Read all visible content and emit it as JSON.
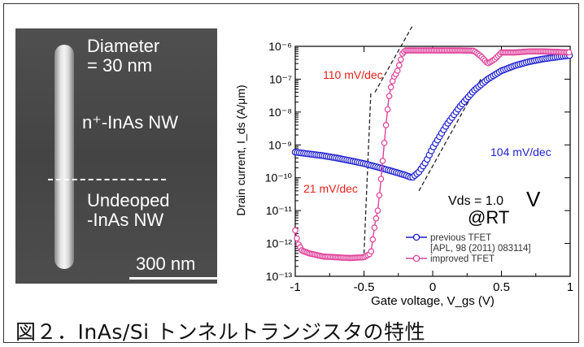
{
  "sem_image": {
    "diameter_label": "Diameter\n= 30 nm",
    "ntype_label": "n⁺-InAs NW",
    "undoped_label": "Undeoped\n-InAs NW",
    "scale_bar_label": "300 nm"
  },
  "chart_data": {
    "type": "line",
    "title": "",
    "xlabel": "Gate voltage, V_gs (V)",
    "ylabel": "Drain current, I_ds (A/μm)",
    "xlim": [
      -1,
      1
    ],
    "ylim_log10": [
      -13,
      -6
    ],
    "y_scale": "log",
    "x_ticks": [
      "-1",
      "-0.5",
      "0",
      "0.5",
      "1"
    ],
    "y_ticks": [
      "10⁻¹³",
      "10⁻¹²",
      "10⁻¹¹",
      "10⁻¹⁰",
      "10⁻⁹",
      "10⁻⁸",
      "10⁻⁷",
      "10⁻⁶"
    ],
    "grid": false,
    "legend_placement": "bottom-right",
    "series": [
      {
        "name": "previous TFET",
        "legend_extra": "[APL, 98 (2011) 083114]",
        "color": "#1f1fd0",
        "marker": "circle",
        "x": [
          -1.0,
          -0.9,
          -0.8,
          -0.7,
          -0.6,
          -0.5,
          -0.4,
          -0.3,
          -0.2,
          -0.15,
          -0.1,
          -0.05,
          0.0,
          0.1,
          0.2,
          0.3,
          0.4,
          0.5,
          0.6,
          0.7,
          0.8,
          0.9,
          1.0
        ],
        "y": [
          6e-10,
          5.3e-10,
          4.7e-10,
          4e-10,
          3.3e-10,
          2.7e-10,
          2.1e-10,
          1.6e-10,
          1.2e-10,
          1e-10,
          1.5e-10,
          3e-10,
          8e-10,
          4e-09,
          1.5e-08,
          4.5e-08,
          1e-07,
          1.8e-07,
          2.6e-07,
          3.4e-07,
          4.1e-07,
          4.7e-07,
          5.3e-07
        ]
      },
      {
        "name": "improved TFET",
        "color": "#e0409a",
        "marker": "circle",
        "x": [
          -1.0,
          -0.98,
          -0.95,
          -0.9,
          -0.85,
          -0.8,
          -0.7,
          -0.6,
          -0.5,
          -0.45,
          -0.42,
          -0.4,
          -0.38,
          -0.36,
          -0.34,
          -0.32,
          -0.3,
          -0.28,
          -0.26,
          -0.24,
          -0.22,
          -0.2,
          -0.15,
          -0.1,
          0.0,
          0.1,
          0.2,
          0.3,
          0.35,
          0.4,
          0.45,
          0.5,
          0.6,
          0.7,
          0.8,
          0.9,
          1.0
        ],
        "y": [
          2.5e-12,
          1e-12,
          6e-13,
          5e-13,
          4.5e-13,
          4e-13,
          3.8e-13,
          3.6e-13,
          3.8e-13,
          5e-13,
          4e-12,
          1e-11,
          6e-11,
          5e-10,
          4e-09,
          2.5e-08,
          7e-08,
          1.2e-07,
          1.6e-07,
          3e-07,
          6e-07,
          7.5e-07,
          7.5e-07,
          7.5e-07,
          7.5e-07,
          7.5e-07,
          7.5e-07,
          7.3e-07,
          5e-07,
          3e-07,
          4e-07,
          6.5e-07,
          6.5e-07,
          7e-07,
          7e-07,
          6.8e-07,
          6.5e-07
        ]
      }
    ],
    "annotations": {
      "slope_top": "110 mV/dec",
      "slope_bottom": "21 mV/dec",
      "slope_right": "104 mV/dec",
      "vds_label": "Vds = 1.0",
      "vds_unit": "V",
      "clipped_text": "@RT"
    },
    "colors": {
      "slope_label_red": "#e8201a",
      "slope_label_blue": "#1f1fd0"
    }
  },
  "caption": "図２．InAs/Si トンネルトランジスタの特性"
}
